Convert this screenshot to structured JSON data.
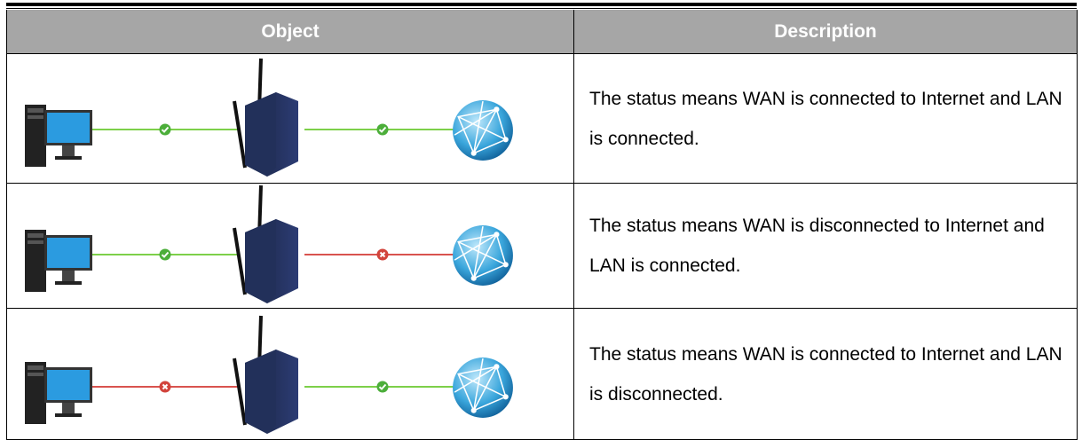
{
  "table": {
    "header": [
      "Object",
      "Description"
    ],
    "rows": [
      {
        "description": "The status means WAN is connected to Internet and LAN is connected."
      },
      {
        "description": "The status means WAN is disconnected to Internet and LAN is connected."
      },
      {
        "description": "The status means WAN is connected to Internet and LAN is disconnected."
      }
    ]
  }
}
